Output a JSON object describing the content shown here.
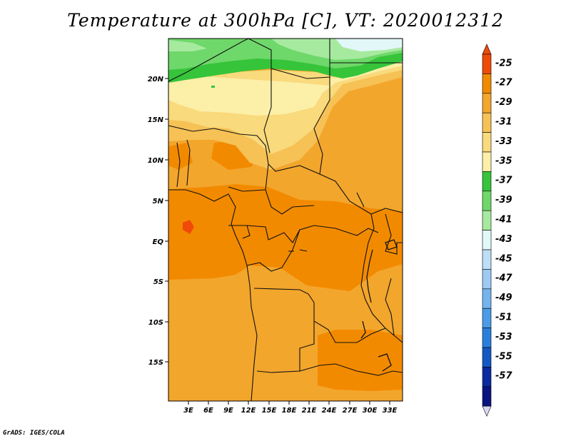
{
  "title": "Temperature at 300hPa [C], VT: 2020012312",
  "credit": "GrADS: IGES/COLA",
  "map": {
    "lat_labels": [
      "20N",
      "15N",
      "10N",
      "5N",
      "EQ",
      "5S",
      "10S",
      "15S"
    ],
    "lon_labels": [
      "3E",
      "6E",
      "9E",
      "12E",
      "15E",
      "18E",
      "21E",
      "24E",
      "27E",
      "30E",
      "33E"
    ]
  },
  "colorbar": {
    "levels": [
      "-25",
      "-27",
      "-29",
      "-31",
      "-33",
      "-35",
      "-37",
      "-39",
      "-41",
      "-43",
      "-45",
      "-47",
      "-49",
      "-51",
      "-53",
      "-55",
      "-57"
    ],
    "colors": [
      "#f04a08",
      "#f28a00",
      "#f3a62c",
      "#f6c155",
      "#f9da7c",
      "#fcefa8",
      "#36c43a",
      "#6fd86a",
      "#a6eaa0",
      "#e2f8f8",
      "#bcdef6",
      "#9ccaf2",
      "#74b4ee",
      "#4a9ce8",
      "#2a7fde",
      "#1458c4",
      "#0a2aa0",
      "#0a1480"
    ],
    "top_color": "#f04a08",
    "bottom_color": "#d8d8f4"
  }
}
